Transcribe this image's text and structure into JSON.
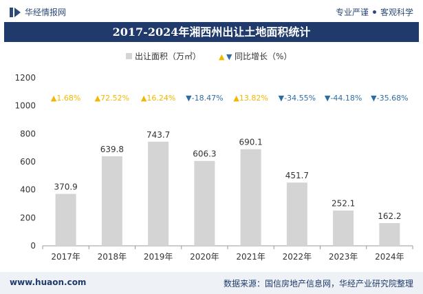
{
  "header": {
    "brand": "华经情报网",
    "tags": [
      "专业严谨",
      "客观科学"
    ]
  },
  "chart_data": {
    "type": "bar",
    "title": "2017-2024年湘西州出让土地面积统计",
    "categories": [
      "2017年",
      "2018年",
      "2019年",
      "2020年",
      "2021年",
      "2022年",
      "2023年",
      "2024年"
    ],
    "series": [
      {
        "name": "出让面积（万㎡）",
        "values": [
          370.9,
          639.8,
          743.7,
          606.3,
          690.1,
          451.7,
          252.1,
          162.2
        ]
      },
      {
        "name": "同比增长（%）",
        "values": [
          1.68,
          72.52,
          16.24,
          -18.47,
          13.82,
          -34.55,
          -44.18,
          -35.68
        ]
      }
    ],
    "bar_labels": [
      "370.9",
      "639.8",
      "743.7",
      "606.3",
      "690.1",
      "451.7",
      "252.1",
      "162.2"
    ],
    "growth_labels": [
      "1.68%",
      "72.52%",
      "16.24%",
      "-18.47%",
      "13.82%",
      "-34.55%",
      "-44.18%",
      "-35.68%"
    ],
    "y_ticks": [
      "0",
      "200",
      "400",
      "600",
      "800",
      "1000",
      "1200"
    ],
    "ylim": [
      0,
      1200
    ],
    "legend": {
      "position": "top-center",
      "up_marker": "▲",
      "down_marker": "▼"
    },
    "colors": {
      "bar": "#d4d4d4",
      "up": "#f0b800",
      "down": "#2e6da4",
      "title_bg": "#1f3a6b"
    }
  },
  "footer": {
    "website": "www.huaon.com",
    "source": "数据来源：国信房地产信息网，华经产业研究院整理"
  }
}
